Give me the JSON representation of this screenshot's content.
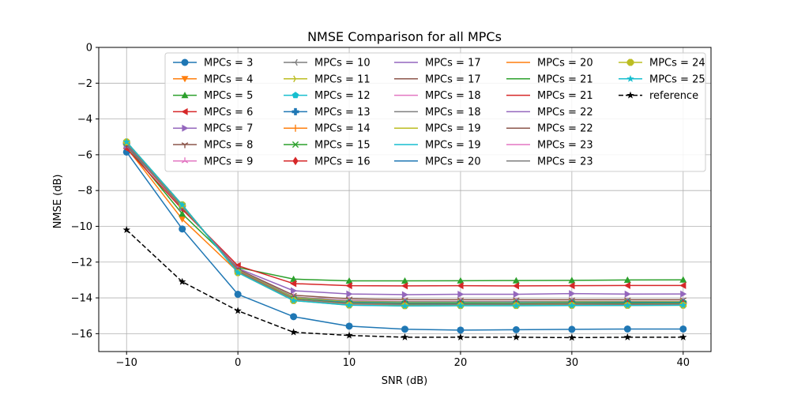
{
  "chart_data": {
    "type": "line",
    "title": "NMSE Comparison for all MPCs",
    "xlabel": "SNR (dB)",
    "ylabel": "NMSE (dB)",
    "xlim": [
      -12.5,
      42.5
    ],
    "ylim": [
      -17,
      0
    ],
    "xticks": [
      -10,
      0,
      10,
      20,
      30,
      40
    ],
    "xtick_labels": [
      "−10",
      "0",
      "10",
      "20",
      "30",
      "40"
    ],
    "yticks": [
      0,
      -2,
      -4,
      -6,
      -8,
      -10,
      -12,
      -14,
      -16
    ],
    "ytick_labels": [
      "0",
      "−2",
      "−4",
      "−6",
      "−8",
      "−10",
      "−12",
      "−14",
      "−16"
    ],
    "grid": true,
    "legend_position": "top-right",
    "legend_columns": 5,
    "x": [
      -10,
      -5,
      0,
      5,
      10,
      15,
      20,
      25,
      30,
      35,
      40
    ],
    "series": [
      {
        "name": "MPCs = 3",
        "color": "#1f77b4",
        "marker": "circle",
        "dash": "solid",
        "values": [
          -5.85,
          -10.15,
          -13.8,
          -15.05,
          -15.58,
          -15.75,
          -15.8,
          -15.78,
          -15.76,
          -15.74,
          -15.74
        ]
      },
      {
        "name": "MPCs = 4",
        "color": "#ff7f0e",
        "marker": "triangle-down",
        "dash": "solid",
        "values": [
          -5.6,
          -9.6,
          -12.55,
          -14.0,
          -14.3,
          -14.35,
          -14.35,
          -14.35,
          -14.33,
          -14.33,
          -14.32
        ]
      },
      {
        "name": "MPCs = 5",
        "color": "#2ca02c",
        "marker": "triangle-up",
        "dash": "solid",
        "values": [
          -5.5,
          -9.3,
          -12.3,
          -12.95,
          -13.05,
          -13.05,
          -13.04,
          -13.03,
          -13.02,
          -13.0,
          -12.99
        ]
      },
      {
        "name": "MPCs = 6",
        "color": "#d62728",
        "marker": "triangle-left",
        "dash": "solid",
        "values": [
          -5.65,
          -9.05,
          -12.2,
          -13.2,
          -13.32,
          -13.33,
          -13.32,
          -13.33,
          -13.32,
          -13.31,
          -13.31
        ]
      },
      {
        "name": "MPCs = 7",
        "color": "#9467bd",
        "marker": "triangle-right",
        "dash": "solid",
        "values": [
          -5.5,
          -8.95,
          -12.35,
          -13.6,
          -13.78,
          -13.82,
          -13.8,
          -13.8,
          -13.76,
          -13.79,
          -13.78
        ]
      },
      {
        "name": "MPCs = 8",
        "color": "#8c564b",
        "marker": "tri-down",
        "dash": "solid",
        "values": [
          -5.45,
          -8.95,
          -12.4,
          -13.85,
          -14.05,
          -14.1,
          -14.1,
          -14.1,
          -14.1,
          -14.1,
          -14.1
        ]
      },
      {
        "name": "MPCs = 9",
        "color": "#e377c2",
        "marker": "tri-up",
        "dash": "solid",
        "values": [
          -5.4,
          -8.9,
          -12.45,
          -13.95,
          -14.15,
          -14.2,
          -14.2,
          -14.2,
          -14.2,
          -14.2,
          -14.2
        ]
      },
      {
        "name": "MPCs = 10",
        "color": "#7f7f7f",
        "marker": "tri-left",
        "dash": "solid",
        "values": [
          -5.4,
          -8.9,
          -12.45,
          -13.95,
          -14.18,
          -14.22,
          -14.22,
          -14.22,
          -14.2,
          -14.2,
          -14.2
        ]
      },
      {
        "name": "MPCs = 11",
        "color": "#bcbd22",
        "marker": "tri-right",
        "dash": "solid",
        "values": [
          -5.35,
          -8.88,
          -12.48,
          -14.0,
          -14.22,
          -14.25,
          -14.25,
          -14.25,
          -14.23,
          -14.23,
          -14.22
        ]
      },
      {
        "name": "MPCs = 12",
        "color": "#17becf",
        "marker": "pentagon",
        "dash": "solid",
        "values": [
          -5.35,
          -8.85,
          -12.5,
          -14.05,
          -14.25,
          -14.28,
          -14.28,
          -14.27,
          -14.26,
          -14.25,
          -14.25
        ]
      },
      {
        "name": "MPCs = 13",
        "color": "#1f77b4",
        "marker": "plus-filled",
        "dash": "solid",
        "values": [
          -5.35,
          -8.85,
          -12.5,
          -14.05,
          -14.27,
          -14.3,
          -14.3,
          -14.3,
          -14.28,
          -14.27,
          -14.27
        ]
      },
      {
        "name": "MPCs = 14",
        "color": "#ff7f0e",
        "marker": "plus",
        "dash": "solid",
        "values": [
          -5.33,
          -8.85,
          -12.5,
          -14.07,
          -14.3,
          -14.33,
          -14.32,
          -14.32,
          -14.3,
          -14.3,
          -14.3
        ]
      },
      {
        "name": "MPCs = 15",
        "color": "#2ca02c",
        "marker": "x",
        "dash": "solid",
        "values": [
          -5.33,
          -8.84,
          -12.52,
          -14.08,
          -14.3,
          -14.33,
          -14.32,
          -14.33,
          -14.31,
          -14.3,
          -14.3
        ]
      },
      {
        "name": "MPCs = 16",
        "color": "#d62728",
        "marker": "diamond",
        "dash": "solid",
        "values": [
          -5.33,
          -8.84,
          -12.52,
          -14.1,
          -14.33,
          -14.37,
          -14.36,
          -14.36,
          -14.35,
          -14.35,
          -14.34
        ]
      },
      {
        "name": "MPCs = 17",
        "color": "#9467bd",
        "marker": "none",
        "dash": "solid",
        "values": [
          -5.32,
          -8.83,
          -12.53,
          -14.1,
          -14.33,
          -14.37,
          -14.36,
          -14.36,
          -14.35,
          -14.35,
          -14.34
        ]
      },
      {
        "name": "MPCs = 17",
        "color": "#8c564b",
        "marker": "none",
        "dash": "solid",
        "values": [
          -5.32,
          -8.83,
          -12.53,
          -14.1,
          -14.34,
          -14.38,
          -14.37,
          -14.37,
          -14.36,
          -14.35,
          -14.35
        ]
      },
      {
        "name": "MPCs = 18",
        "color": "#e377c2",
        "marker": "none",
        "dash": "solid",
        "values": [
          -5.32,
          -8.83,
          -12.54,
          -14.1,
          -14.34,
          -14.38,
          -14.37,
          -14.37,
          -14.36,
          -14.36,
          -14.35
        ]
      },
      {
        "name": "MPCs = 18",
        "color": "#7f7f7f",
        "marker": "none",
        "dash": "solid",
        "values": [
          -5.32,
          -8.83,
          -12.54,
          -14.11,
          -14.35,
          -14.39,
          -14.38,
          -14.38,
          -14.37,
          -14.36,
          -14.35
        ]
      },
      {
        "name": "MPCs = 19",
        "color": "#bcbd22",
        "marker": "none",
        "dash": "solid",
        "values": [
          -5.31,
          -8.82,
          -12.55,
          -14.11,
          -14.35,
          -14.39,
          -14.38,
          -14.38,
          -14.37,
          -14.37,
          -14.36
        ]
      },
      {
        "name": "MPCs = 19",
        "color": "#17becf",
        "marker": "none",
        "dash": "solid",
        "values": [
          -5.31,
          -8.82,
          -12.55,
          -14.12,
          -14.36,
          -14.4,
          -14.39,
          -14.39,
          -14.38,
          -14.37,
          -14.36
        ]
      },
      {
        "name": "MPCs = 20",
        "color": "#1f77b4",
        "marker": "none",
        "dash": "solid",
        "values": [
          -5.31,
          -8.82,
          -12.55,
          -14.12,
          -14.36,
          -14.4,
          -14.39,
          -14.39,
          -14.38,
          -14.38,
          -14.37
        ]
      },
      {
        "name": "MPCs = 20",
        "color": "#ff7f0e",
        "marker": "none",
        "dash": "solid",
        "values": [
          -5.3,
          -8.82,
          -12.56,
          -14.12,
          -14.37,
          -14.41,
          -14.4,
          -14.4,
          -14.39,
          -14.38,
          -14.37
        ]
      },
      {
        "name": "MPCs = 21",
        "color": "#2ca02c",
        "marker": "none",
        "dash": "solid",
        "values": [
          -5.3,
          -8.81,
          -12.56,
          -14.13,
          -14.37,
          -14.41,
          -14.4,
          -14.4,
          -14.39,
          -14.39,
          -14.38
        ]
      },
      {
        "name": "MPCs = 21",
        "color": "#d62728",
        "marker": "none",
        "dash": "solid",
        "values": [
          -5.3,
          -8.81,
          -12.57,
          -14.13,
          -14.38,
          -14.42,
          -14.41,
          -14.41,
          -14.4,
          -14.39,
          -14.38
        ]
      },
      {
        "name": "MPCs = 22",
        "color": "#9467bd",
        "marker": "none",
        "dash": "solid",
        "values": [
          -5.3,
          -8.81,
          -12.57,
          -14.13,
          -14.38,
          -14.42,
          -14.41,
          -14.41,
          -14.4,
          -14.4,
          -14.39
        ]
      },
      {
        "name": "MPCs = 22",
        "color": "#8c564b",
        "marker": "none",
        "dash": "solid",
        "values": [
          -5.29,
          -8.81,
          -12.57,
          -14.14,
          -14.39,
          -14.43,
          -14.42,
          -14.42,
          -14.41,
          -14.4,
          -14.39
        ]
      },
      {
        "name": "MPCs = 23",
        "color": "#e377c2",
        "marker": "none",
        "dash": "solid",
        "values": [
          -5.29,
          -8.8,
          -12.58,
          -14.14,
          -14.39,
          -14.43,
          -14.42,
          -14.42,
          -14.41,
          -14.41,
          -14.4
        ]
      },
      {
        "name": "MPCs = 23",
        "color": "#7f7f7f",
        "marker": "none",
        "dash": "solid",
        "values": [
          -5.29,
          -8.8,
          -12.58,
          -14.14,
          -14.4,
          -14.44,
          -14.43,
          -14.43,
          -14.42,
          -14.41,
          -14.4
        ]
      },
      {
        "name": "MPCs = 24",
        "color": "#bcbd22",
        "marker": "octagon",
        "dash": "solid",
        "values": [
          -5.28,
          -8.8,
          -12.59,
          -14.15,
          -14.4,
          -14.44,
          -14.43,
          -14.43,
          -14.42,
          -14.42,
          -14.41
        ]
      },
      {
        "name": "MPCs = 25",
        "color": "#17becf",
        "marker": "star",
        "dash": "solid",
        "values": [
          -5.28,
          -8.8,
          -12.59,
          -14.15,
          -14.41,
          -14.45,
          -14.44,
          -14.44,
          -14.43,
          -14.42,
          -14.41
        ]
      },
      {
        "name": "reference",
        "color": "#000000",
        "marker": "star",
        "dash": "dashed",
        "values": [
          -10.2,
          -13.1,
          -14.72,
          -15.92,
          -16.1,
          -16.2,
          -16.2,
          -16.2,
          -16.22,
          -16.2,
          -16.2
        ]
      }
    ]
  }
}
